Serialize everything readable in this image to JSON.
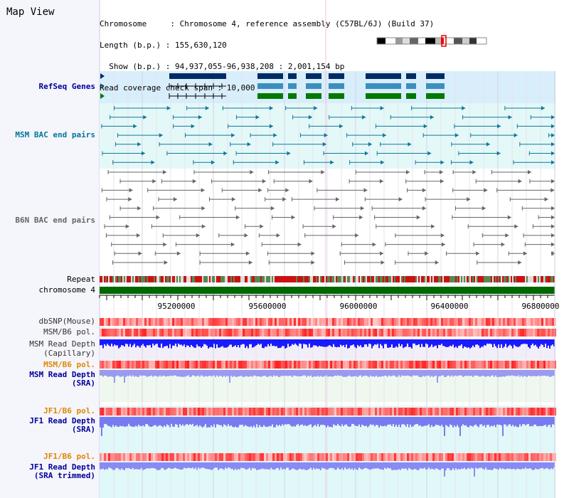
{
  "title": "Map View",
  "info": {
    "line1": "Chromosome     : Chromosome 4, reference assembly (C57BL/6J) (Build 37)",
    "line2": "Length (b.p.) : 155,630,120",
    "line3": "  Show (b.p.) : 94,937,055-96,938,208 : 2,001,154 bp",
    "line4": "Read coverage check span : 10,000"
  },
  "tracks": {
    "refseq": "RefSeq Genes",
    "msm_bac": "MSM BAC end pairs",
    "b6n_bac": "B6N BAC end pairs",
    "repeat": "Repeat",
    "chromosome": "chromosome 4",
    "dbsnp": "dbSNP(Mouse)",
    "msm_b6_pol": "MSM/B6 pol.",
    "msm_depth_cap_1": "MSM Read Depth",
    "msm_depth_cap_2": "(Capillary)",
    "msm_b6_pol2": "MSM/B6 pol.",
    "msm_depth_sra_1": "MSM Read Depth",
    "msm_depth_sra_2": "(SRA)",
    "jf1_b6_pol": "JF1/B6 pol.",
    "jf1_depth_sra_1": "JF1 Read Depth",
    "jf1_depth_sra_2": "(SRA)",
    "jf1_b6_pol2": "JF1/B6 pol.",
    "jf1_depth_trim_1": "JF1 Read Depth",
    "jf1_depth_trim_2": "(SRA trimmed)"
  },
  "axis": {
    "ticks": [
      "95200000",
      "95600000",
      "96000000",
      "96400000",
      "96800000"
    ]
  },
  "colors": {
    "refseq_dark": "#002b66",
    "refseq_mid": "#3b8fbf",
    "refseq_green": "#007a00",
    "msm_bac": "#117799",
    "b6n_bac": "#666666",
    "chromosome": "#006600",
    "label_navy": "#000099",
    "label_teal": "#007799",
    "label_orange": "#dd8800"
  }
}
